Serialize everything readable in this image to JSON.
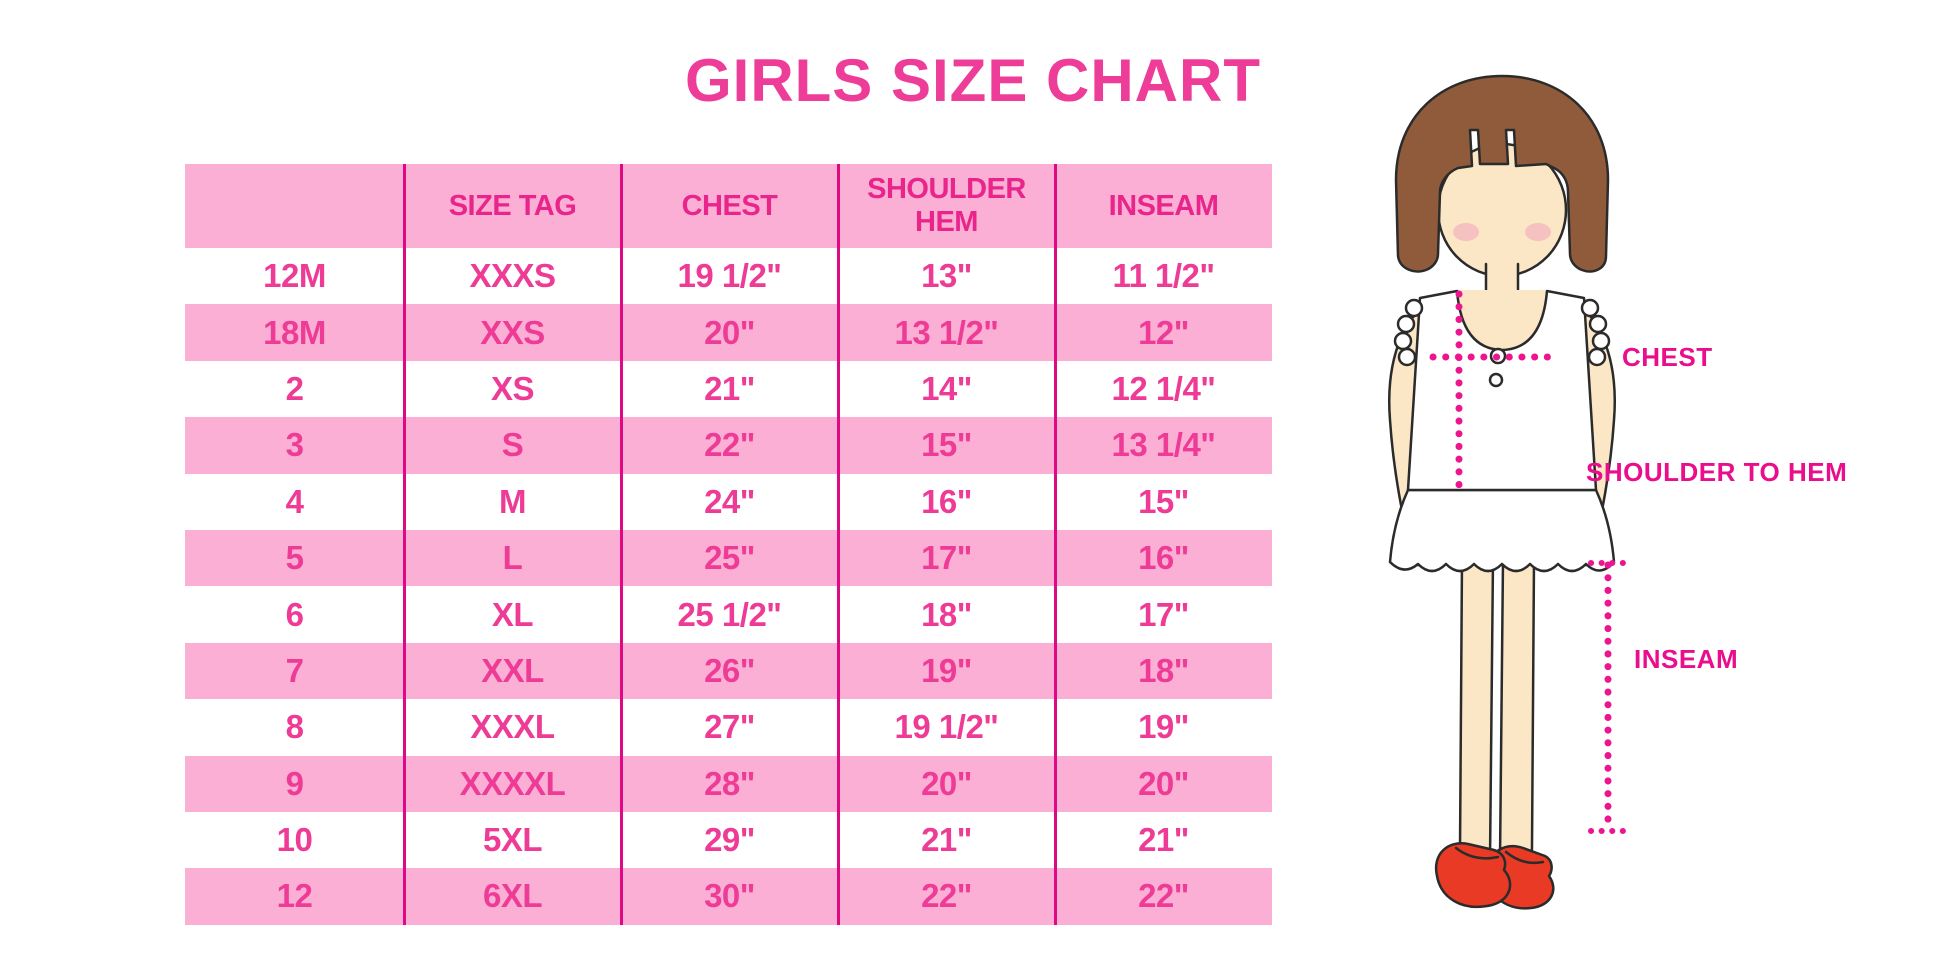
{
  "title": {
    "text": "GIRLS SIZE CHART",
    "color": "#EE3D99"
  },
  "chart_data": {
    "type": "table",
    "title": "GIRLS SIZE CHART",
    "columns": [
      "",
      "SIZE TAG",
      "CHEST",
      "SHOULDER HEM",
      "INSEAM"
    ],
    "rows": [
      [
        "12M",
        "XXXS",
        "19 1/2\"",
        "13\"",
        "11 1/2\""
      ],
      [
        "18M",
        "XXS",
        "20\"",
        "13 1/2\"",
        "12\""
      ],
      [
        "2",
        "XS",
        "21\"",
        "14\"",
        "12 1/4\""
      ],
      [
        "3",
        "S",
        "22\"",
        "15\"",
        "13 1/4\""
      ],
      [
        "4",
        "M",
        "24\"",
        "16\"",
        "15\""
      ],
      [
        "5",
        "L",
        "25\"",
        "17\"",
        "16\""
      ],
      [
        "6",
        "XL",
        "25 1/2\"",
        "18\"",
        "17\""
      ],
      [
        "7",
        "XXL",
        "26\"",
        "19\"",
        "18\""
      ],
      [
        "8",
        "XXXL",
        "27\"",
        "19 1/2\"",
        "19\""
      ],
      [
        "9",
        "XXXXL",
        "28\"",
        "20\"",
        "20\""
      ],
      [
        "10",
        "5XL",
        "29\"",
        "21\"",
        "21\""
      ],
      [
        "12",
        "6XL",
        "30\"",
        "22\"",
        "22\""
      ]
    ]
  },
  "table": {
    "colors": {
      "band": "#FBAFD5",
      "divider": "#E00984",
      "header_text": "#E9258C",
      "cell_text": "#EE3B96"
    }
  },
  "diagram": {
    "labels": {
      "chest": "CHEST",
      "shoulder_to_hem": "SHOULDER TO HEM",
      "inseam": "INSEAM"
    },
    "label_color": "#EA0D8C",
    "dotted_line_color": "#ED148F",
    "colors": {
      "hair": "#8F5B3B",
      "skin": "#FBE7C5",
      "shoe": "#E83A24",
      "blush": "#F3A9BE",
      "outline": "#2b2b2b"
    }
  }
}
